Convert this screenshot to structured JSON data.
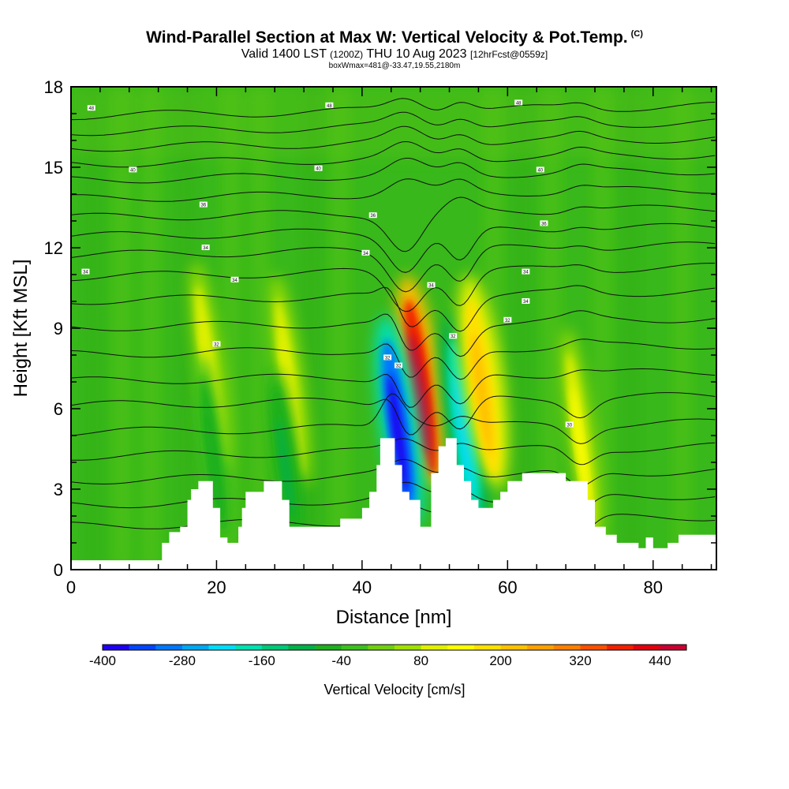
{
  "chart_data": {
    "type": "heatmap",
    "title": "Wind-Parallel Section at Max W: Vertical Velocity & Pot.Temp.",
    "title_mark": "(C)",
    "subtitle_main": "Valid 1400 LST",
    "subtitle_z": "(1200Z)",
    "subtitle_date": "THU 10 Aug 2023",
    "subtitle_fcst": "[12hrFcst@0559z]",
    "note": "boxWmax=481@-33.47,19.55,2180m",
    "xlabel": "Distance [nm]",
    "ylabel": "Height [Kft MSL]",
    "xlim": [
      0,
      88.7
    ],
    "ylim": [
      0,
      18
    ],
    "x_ticks": [
      0,
      20,
      40,
      60,
      80
    ],
    "x_tick_labels": [
      "0",
      "20",
      "40",
      "60",
      "80"
    ],
    "y_ticks": [
      0,
      3,
      6,
      9,
      12,
      15,
      18
    ],
    "y_tick_labels": [
      "0",
      "3",
      "6",
      "9",
      "12",
      "15",
      "18"
    ],
    "colorbar_title": "Vertical Velocity [cm/s]",
    "colorbar_tick_labels": [
      "-400",
      "-280",
      "-160",
      "-40",
      "80",
      "200",
      "320",
      "440"
    ],
    "colorbar_colors": [
      "#1f00f0",
      "#0045ff",
      "#0077ff",
      "#00a8f0",
      "#00dcf8",
      "#00e0b0",
      "#00c878",
      "#00b048",
      "#1eb01e",
      "#3cc01e",
      "#70d010",
      "#a0e000",
      "#e0f000",
      "#ffff00",
      "#ffe000",
      "#ffc000",
      "#ffa000",
      "#ff8000",
      "#ff5000",
      "#f02000",
      "#e00010",
      "#c80030"
    ],
    "background_color": "#38b81a",
    "terrain": [
      [
        0,
        0.35
      ],
      [
        12.5,
        0.35
      ],
      [
        12.5,
        1
      ],
      [
        13.5,
        1
      ],
      [
        13.5,
        1.4
      ],
      [
        15,
        1.4
      ],
      [
        15,
        1.6
      ],
      [
        16,
        1.6
      ],
      [
        16,
        2.6
      ],
      [
        16.5,
        2.6
      ],
      [
        16.5,
        3
      ],
      [
        17.5,
        3
      ],
      [
        17.5,
        3.3
      ],
      [
        19.5,
        3.3
      ],
      [
        19.5,
        2.3
      ],
      [
        20.5,
        2.3
      ],
      [
        20.5,
        1.2
      ],
      [
        21.5,
        1.2
      ],
      [
        21.5,
        1
      ],
      [
        23,
        1
      ],
      [
        23,
        1.6
      ],
      [
        23.5,
        1.6
      ],
      [
        23.5,
        2.3
      ],
      [
        24,
        2.3
      ],
      [
        24,
        2.9
      ],
      [
        26.5,
        2.9
      ],
      [
        26.5,
        3.3
      ],
      [
        29,
        3.3
      ],
      [
        29,
        2.6
      ],
      [
        30,
        2.6
      ],
      [
        30,
        1.6
      ],
      [
        37,
        1.6
      ],
      [
        37,
        1.9
      ],
      [
        40,
        1.9
      ],
      [
        40,
        2.3
      ],
      [
        41,
        2.3
      ],
      [
        41,
        2.9
      ],
      [
        42,
        2.9
      ],
      [
        42,
        3.9
      ],
      [
        42.5,
        3.9
      ],
      [
        42.5,
        4.9
      ],
      [
        44.5,
        4.9
      ],
      [
        44.5,
        3.9
      ],
      [
        45.5,
        3.9
      ],
      [
        45.5,
        2.9
      ],
      [
        46.5,
        2.9
      ],
      [
        46.5,
        2.6
      ],
      [
        48,
        2.6
      ],
      [
        48,
        1.6
      ],
      [
        49.5,
        1.6
      ],
      [
        49.5,
        3.6
      ],
      [
        50.5,
        3.6
      ],
      [
        50.5,
        4.6
      ],
      [
        51.5,
        4.6
      ],
      [
        51.5,
        4.9
      ],
      [
        53,
        4.9
      ],
      [
        53,
        3.9
      ],
      [
        54,
        3.9
      ],
      [
        54,
        3.3
      ],
      [
        55,
        3.3
      ],
      [
        55,
        2.6
      ],
      [
        56,
        2.6
      ],
      [
        56,
        2.3
      ],
      [
        58,
        2.3
      ],
      [
        58,
        2.6
      ],
      [
        59,
        2.6
      ],
      [
        59,
        2.9
      ],
      [
        60,
        2.9
      ],
      [
        60,
        3.3
      ],
      [
        62,
        3.3
      ],
      [
        62,
        3.6
      ],
      [
        68,
        3.6
      ],
      [
        68,
        3.3
      ],
      [
        71,
        3.3
      ],
      [
        71,
        2.6
      ],
      [
        72,
        2.6
      ],
      [
        72,
        1.6
      ],
      [
        73.5,
        1.6
      ],
      [
        73.5,
        1.3
      ],
      [
        75,
        1.3
      ],
      [
        75,
        1
      ],
      [
        78,
        1
      ],
      [
        78,
        0.8
      ],
      [
        79,
        0.8
      ],
      [
        79,
        1.2
      ],
      [
        80,
        1.2
      ],
      [
        80,
        0.8
      ],
      [
        82,
        0.8
      ],
      [
        82,
        1
      ],
      [
        83.5,
        1
      ],
      [
        83.5,
        1.3
      ],
      [
        88.7,
        1.3
      ]
    ],
    "theta_labels": [
      [
        "48",
        2.8,
        17.2
      ],
      [
        "48",
        35.5,
        17.3
      ],
      [
        "48",
        61.5,
        17.4
      ],
      [
        "40",
        8.5,
        14.9
      ],
      [
        "40",
        34,
        14.95
      ],
      [
        "40",
        64.5,
        14.9
      ],
      [
        "36",
        18.2,
        13.6
      ],
      [
        "36",
        41.5,
        13.2
      ],
      [
        "36",
        65,
        12.9
      ],
      [
        "34",
        2,
        11.1
      ],
      [
        "34",
        18.5,
        12
      ],
      [
        "34",
        40.5,
        11.8
      ],
      [
        "34",
        22.5,
        10.8
      ],
      [
        "34",
        49.5,
        10.6
      ],
      [
        "34",
        62.5,
        11.1
      ],
      [
        "34",
        62.5,
        10
      ],
      [
        "32",
        60,
        9.3
      ],
      [
        "32",
        20,
        8.4
      ],
      [
        "32",
        52.5,
        8.7
      ],
      [
        "32",
        43.5,
        7.9
      ],
      [
        "32",
        45,
        7.6
      ],
      [
        "30",
        68.5,
        5.4
      ]
    ],
    "w_features": [
      {
        "x": 47.5,
        "h": 7.5,
        "value": 480
      },
      {
        "x": 44.5,
        "h": 6.0,
        "value": -400
      },
      {
        "x": 53.5,
        "h": 6.0,
        "value": -220
      },
      {
        "x": 56.0,
        "h": 7.5,
        "value": 220
      },
      {
        "x": 69.5,
        "h": 5.5,
        "value": 120
      },
      {
        "x": 18.5,
        "h": 8.0,
        "value": 110
      },
      {
        "x": 19.0,
        "h": 4.5,
        "value": -80
      },
      {
        "x": 29.5,
        "h": 7.5,
        "value": 110
      },
      {
        "x": 29.0,
        "h": 4.0,
        "value": -90
      }
    ]
  }
}
